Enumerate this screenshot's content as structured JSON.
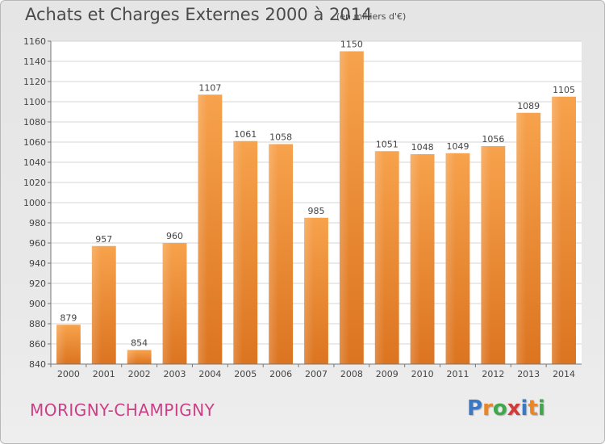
{
  "header": {
    "title": "Achats et Charges Externes 2000 à 2014",
    "subtitle": "(en milliers d'€)"
  },
  "footer": {
    "commune": "MORIGNY-CHAMPIGNY",
    "logo": {
      "letters": [
        "P",
        "r",
        "o",
        "x",
        "i",
        "t",
        "i"
      ],
      "colors": [
        "#3a78c4",
        "#e8862a",
        "#3fa84a",
        "#d33a3a",
        "#3a78c4",
        "#e8862a",
        "#3fa84a"
      ]
    }
  },
  "chart_data": {
    "type": "bar",
    "categories": [
      "2000",
      "2001",
      "2002",
      "2003",
      "2004",
      "2005",
      "2006",
      "2007",
      "2008",
      "2009",
      "2010",
      "2011",
      "2012",
      "2013",
      "2014"
    ],
    "values": [
      879,
      957,
      854,
      960,
      1107,
      1061,
      1058,
      985,
      1150,
      1051,
      1048,
      1049,
      1056,
      1089,
      1105
    ],
    "ylim": [
      840,
      1160
    ],
    "yticks": [
      840,
      860,
      880,
      900,
      920,
      940,
      960,
      980,
      1000,
      1020,
      1040,
      1060,
      1080,
      1100,
      1120,
      1140,
      1160
    ],
    "grid": true,
    "bar_color": "#f0963a"
  }
}
